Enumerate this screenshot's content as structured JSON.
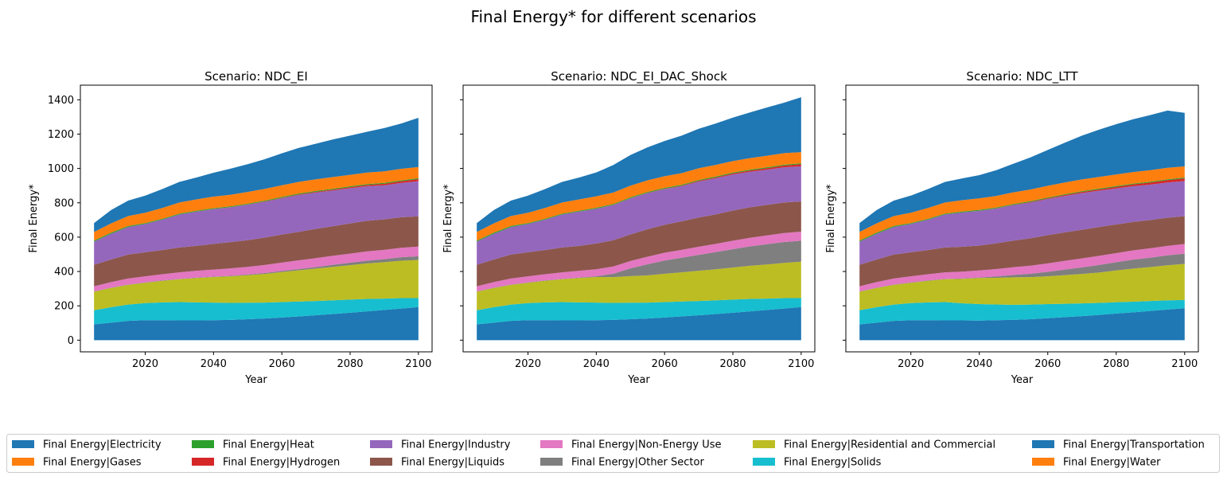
{
  "figure": {
    "title": "Final Energy* for different scenarios"
  },
  "chart_data": {
    "type": "area",
    "stacked": true,
    "legend_placement": "bottom-center",
    "legend_columns": 6,
    "grid": false,
    "shared_y": true,
    "series_names": [
      "Final Energy|Electricity",
      "Final Energy|Gases",
      "Final Energy|Heat",
      "Final Energy|Hydrogen",
      "Final Energy|Industry",
      "Final Energy|Liquids",
      "Final Energy|Non-Energy Use",
      "Final Energy|Other Sector",
      "Final Energy|Residential and Commercial",
      "Final Energy|Solids",
      "Final Energy|Transportation",
      "Final Energy|Water"
    ],
    "colors": [
      "#1f77b4",
      "#ff7f0e",
      "#2ca02c",
      "#d62728",
      "#9467bd",
      "#8c564b",
      "#e377c2",
      "#7f7f7f",
      "#bcbd22",
      "#17becf",
      "#1f77b4",
      "#ff7f0e"
    ],
    "stack_order": [
      "Final Energy|Water",
      "Final Energy|Transportation",
      "Final Energy|Solids",
      "Final Energy|Residential and Commercial",
      "Final Energy|Other Sector",
      "Final Energy|Non-Energy Use",
      "Final Energy|Liquids",
      "Final Energy|Industry",
      "Final Energy|Hydrogen",
      "Final Energy|Heat",
      "Final Energy|Gases",
      "Final Energy|Electricity"
    ],
    "xlabel": "Year",
    "ylabel": "Final Energy*",
    "xticks": [
      2020,
      2040,
      2060,
      2080,
      2100
    ],
    "yticks": [
      0,
      200,
      400,
      600,
      800,
      1000,
      1200,
      1400
    ],
    "xlim": [
      2001,
      2104
    ],
    "ylim": [
      -68,
      1485
    ],
    "x": [
      2005,
      2010,
      2015,
      2020,
      2025,
      2030,
      2035,
      2040,
      2045,
      2050,
      2055,
      2060,
      2065,
      2070,
      2075,
      2080,
      2085,
      2090,
      2095,
      2100
    ],
    "panels": [
      {
        "title": "Scenario: NDC_EI",
        "series": [
          {
            "name": "Final Energy|Water",
            "values": [
              0,
              0,
              0,
              0,
              0,
              0,
              0,
              0,
              0,
              0,
              0,
              0,
              0,
              0,
              0,
              0,
              0,
              0,
              0,
              0
            ]
          },
          {
            "name": "Final Energy|Transportation",
            "values": [
              92,
              102,
              112,
              116,
              116,
              115,
              115,
              116,
              118,
              122,
              126,
              132,
              138,
              145,
              152,
              160,
              168,
              176,
              184,
              193
            ]
          },
          {
            "name": "Final Energy|Solids",
            "values": [
              82,
              90,
              95,
              100,
              104,
              107,
              105,
              103,
              99,
              96,
              93,
              90,
              87,
              83,
              80,
              76,
              72,
              66,
              61,
              52
            ]
          },
          {
            "name": "Final Energy|Residential and Commercial",
            "values": [
              108,
              112,
              115,
              118,
              126,
              133,
              142,
              149,
              155,
              160,
              167,
              175,
              182,
              189,
              195,
              201,
              207,
              212,
              218,
              222
            ]
          },
          {
            "name": "Final Energy|Other Sector",
            "values": [
              2,
              2,
              2,
              2,
              2,
              2,
              2,
              2,
              3,
              4,
              5,
              6,
              7,
              9,
              12,
              14,
              16,
              18,
              20,
              22
            ]
          },
          {
            "name": "Final Energy|Non-Energy Use",
            "values": [
              30,
              32,
              35,
              36,
              36,
              38,
              40,
              41,
              43,
              45,
              47,
              49,
              51,
              52,
              53,
              53,
              54,
              54,
              55,
              56
            ]
          },
          {
            "name": "Final Energy|Liquids",
            "values": [
              125,
              132,
              140,
              140,
              141,
              145,
              145,
              150,
              153,
              155,
              160,
              163,
              166,
              170,
              172,
              176,
              178,
              178,
              178,
              176
            ]
          },
          {
            "name": "Final Energy|Industry",
            "values": [
              135,
              150,
              160,
              165,
              177,
              192,
              200,
              202,
              203,
              207,
              208,
              212,
              215,
              212,
              208,
              205,
              202,
              198,
              200,
              205
            ]
          },
          {
            "name": "Final Energy|Hydrogen",
            "values": [
              0,
              0,
              0,
              0,
              0,
              0,
              0,
              1,
              1,
              1,
              2,
              2,
              3,
              4,
              5,
              6,
              7,
              9,
              10,
              12
            ]
          },
          {
            "name": "Final Energy|Heat",
            "values": [
              6,
              6,
              6,
              5,
              5,
              5,
              5,
              5,
              5,
              5,
              5,
              5,
              5,
              5,
              5,
              5,
              5,
              5,
              5,
              5
            ]
          },
          {
            "name": "Final Energy|Gases",
            "values": [
              50,
              54,
              58,
              60,
              63,
              65,
              66,
              67,
              67,
              68,
              68,
              68,
              68,
              68,
              68,
              67,
              67,
              67,
              67,
              65
            ]
          },
          {
            "name": "Final Energy|Electricity",
            "values": [
              52,
              78,
              90,
              100,
              110,
              120,
              127,
              139,
              152,
              162,
              173,
              186,
              198,
              207,
              219,
              228,
              238,
              252,
              264,
              287
            ]
          }
        ]
      },
      {
        "title": "Scenario: NDC_EI_DAC_Shock",
        "series": [
          {
            "name": "Final Energy|Water",
            "values": [
              0,
              0,
              0,
              0,
              0,
              0,
              0,
              0,
              0,
              0,
              0,
              0,
              0,
              0,
              0,
              0,
              0,
              0,
              0,
              0
            ]
          },
          {
            "name": "Final Energy|Transportation",
            "values": [
              92,
              102,
              112,
              116,
              116,
              115,
              115,
              116,
              118,
              122,
              126,
              132,
              138,
              145,
              152,
              160,
              168,
              176,
              184,
              193
            ]
          },
          {
            "name": "Final Energy|Solids",
            "values": [
              82,
              90,
              95,
              100,
              104,
              107,
              105,
              103,
              99,
              96,
              93,
              90,
              87,
              83,
              80,
              76,
              72,
              66,
              61,
              52
            ]
          },
          {
            "name": "Final Energy|Residential and Commercial",
            "values": [
              108,
              112,
              115,
              118,
              126,
              133,
              142,
              149,
              150,
              155,
              158,
              165,
              170,
              176,
              181,
              187,
              193,
              199,
              205,
              212
            ]
          },
          {
            "name": "Final Energy|Other Sector",
            "values": [
              2,
              2,
              2,
              2,
              2,
              2,
              2,
              4,
              20,
              45,
              65,
              77,
              85,
              93,
              100,
              107,
              113,
              118,
              122,
              122
            ]
          },
          {
            "name": "Final Energy|Non-Energy Use",
            "values": [
              30,
              32,
              35,
              36,
              36,
              38,
              40,
              41,
              42,
              43,
              44,
              45,
              46,
              47,
              48,
              49,
              50,
              51,
              52,
              53
            ]
          },
          {
            "name": "Final Energy|Liquids",
            "values": [
              125,
              132,
              140,
              140,
              141,
              145,
              145,
              150,
              153,
              155,
              160,
              163,
              166,
              170,
              172,
              176,
              178,
              178,
              178,
              176
            ]
          },
          {
            "name": "Final Energy|Industry",
            "values": [
              135,
              150,
              160,
              165,
              177,
              192,
              200,
              202,
              205,
              210,
              210,
              208,
              205,
              210,
              210,
              210,
              207,
              205,
              205,
              205
            ]
          },
          {
            "name": "Final Energy|Hydrogen",
            "values": [
              0,
              0,
              0,
              0,
              0,
              0,
              0,
              1,
              1,
              1,
              2,
              2,
              3,
              4,
              5,
              6,
              7,
              9,
              10,
              12
            ]
          },
          {
            "name": "Final Energy|Heat",
            "values": [
              6,
              6,
              6,
              5,
              5,
              5,
              5,
              5,
              5,
              5,
              5,
              5,
              5,
              5,
              5,
              5,
              5,
              5,
              5,
              5
            ]
          },
          {
            "name": "Final Energy|Gases",
            "values": [
              50,
              54,
              58,
              60,
              63,
              65,
              66,
              67,
              67,
              68,
              68,
              68,
              68,
              68,
              68,
              67,
              67,
              67,
              67,
              65
            ]
          },
          {
            "name": "Final Energy|Electricity",
            "values": [
              52,
              78,
              90,
              100,
              110,
              120,
              127,
              139,
              160,
              178,
              192,
              205,
              218,
              230,
              241,
              253,
              266,
              281,
              294,
              320
            ]
          }
        ]
      },
      {
        "title": "Scenario: NDC_LTT",
        "series": [
          {
            "name": "Final Energy|Water",
            "values": [
              0,
              0,
              0,
              0,
              0,
              0,
              0,
              0,
              0,
              0,
              0,
              0,
              0,
              0,
              0,
              0,
              0,
              0,
              0,
              0
            ]
          },
          {
            "name": "Final Energy|Transportation",
            "values": [
              92,
              102,
              112,
              116,
              116,
              115,
              115,
              114,
              116,
              118,
              122,
              128,
              134,
              140,
              147,
              155,
              162,
              170,
              178,
              186
            ]
          },
          {
            "name": "Final Energy|Solids",
            "values": [
              82,
              90,
              95,
              100,
              104,
              107,
              100,
              96,
              92,
              88,
              85,
              82,
              78,
              74,
              70,
              66,
              62,
              58,
              54,
              48
            ]
          },
          {
            "name": "Final Energy|Residential and Commercial",
            "values": [
              108,
              112,
              115,
              118,
              126,
              133,
              142,
              152,
              155,
              160,
              160,
              162,
              167,
              172,
              177,
              185,
              193,
              198,
              204,
              210
            ]
          },
          {
            "name": "Final Energy|Other Sector",
            "values": [
              2,
              2,
              2,
              2,
              2,
              2,
              2,
              3,
              8,
              14,
              20,
              26,
              32,
              38,
              44,
              48,
              52,
              55,
              58,
              60
            ]
          },
          {
            "name": "Final Energy|Non-Energy Use",
            "values": [
              30,
              32,
              35,
              36,
              36,
              38,
              40,
              41,
              43,
              45,
              47,
              49,
              51,
              52,
              53,
              53,
              54,
              54,
              55,
              56
            ]
          },
          {
            "name": "Final Energy|Liquids",
            "values": [
              125,
              132,
              140,
              140,
              141,
              145,
              145,
              145,
              150,
              155,
              160,
              165,
              166,
              167,
              168,
              167,
              166,
              165,
              164,
              162
            ]
          },
          {
            "name": "Final Energy|Industry",
            "values": [
              135,
              150,
              160,
              165,
              177,
              192,
              200,
              202,
              203,
              206,
              208,
              210,
              212,
              214,
              212,
              210,
              208,
              206,
              205,
              205
            ]
          },
          {
            "name": "Final Energy|Hydrogen",
            "values": [
              0,
              0,
              0,
              0,
              0,
              0,
              0,
              1,
              1,
              2,
              3,
              4,
              5,
              6,
              7,
              9,
              10,
              12,
              14,
              15
            ]
          },
          {
            "name": "Final Energy|Heat",
            "values": [
              6,
              6,
              6,
              5,
              5,
              5,
              5,
              5,
              5,
              5,
              5,
              5,
              5,
              5,
              5,
              5,
              5,
              5,
              5,
              5
            ]
          },
          {
            "name": "Final Energy|Gases",
            "values": [
              50,
              54,
              58,
              60,
              63,
              65,
              66,
              67,
              67,
              68,
              68,
              68,
              68,
              68,
              68,
              67,
              67,
              67,
              67,
              65
            ]
          },
          {
            "name": "Final Energy|Electricity",
            "values": [
              52,
              78,
              90,
              100,
              110,
              120,
              127,
              135,
              150,
              167,
              187,
              209,
              232,
              255,
              275,
              293,
              308,
              321,
              333,
              312
            ]
          }
        ]
      }
    ]
  }
}
